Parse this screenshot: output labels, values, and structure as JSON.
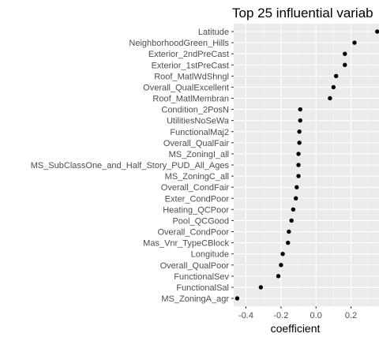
{
  "chart_data": {
    "type": "scatter",
    "title": "Top 25 influential variab",
    "xlabel": "coefficient",
    "ylabel": "",
    "xlim": [
      -0.47,
      0.36
    ],
    "x_ticks": [
      -0.4,
      -0.2,
      0.0,
      0.2
    ],
    "x_tick_labels": [
      "-0.4",
      "-0.2",
      "0.0",
      "0.2"
    ],
    "grid": true,
    "categories": [
      "Latitude",
      "NeighborhoodGreen_Hills",
      "Exterior_2ndPreCast",
      "Exterior_1stPreCast",
      "Roof_MatlWdShngl",
      "Overall_QualExcellent",
      "Roof_MatlMembran",
      "Condition_2PosN",
      "UtilitiesNoSeWa",
      "FunctionalMaj2",
      "Overall_QualFair",
      "MS_ZoningI_all",
      "MS_SubClassOne_and_Half_Story_PUD_All_Ages",
      "MS_ZoningC_all",
      "Overall_CondFair",
      "Exter_CondPoor",
      "Heating_QCPoor",
      "Pool_QCGood",
      "Overall_CondPoor",
      "Mas_Vnr_TypeCBlock",
      "Longitude",
      "Overall_QualPoor",
      "FunctionalSev",
      "FunctionalSal",
      "MS_ZoningA_agr"
    ],
    "values": [
      0.35,
      0.22,
      0.165,
      0.165,
      0.115,
      0.1,
      0.08,
      -0.09,
      -0.09,
      -0.095,
      -0.095,
      -0.1,
      -0.1,
      -0.1,
      -0.11,
      -0.115,
      -0.13,
      -0.14,
      -0.155,
      -0.16,
      -0.19,
      -0.2,
      -0.215,
      -0.315,
      -0.45
    ]
  }
}
